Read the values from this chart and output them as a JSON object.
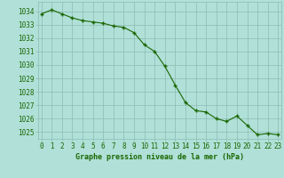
{
  "hours": [
    0,
    1,
    2,
    3,
    4,
    5,
    6,
    7,
    8,
    9,
    10,
    11,
    12,
    13,
    14,
    15,
    16,
    17,
    18,
    19,
    20,
    21,
    22,
    23
  ],
  "pressure": [
    1033.8,
    1034.1,
    1033.8,
    1033.5,
    1033.3,
    1033.2,
    1033.1,
    1032.9,
    1032.8,
    1032.4,
    1031.5,
    1031.0,
    1029.9,
    1028.5,
    1027.2,
    1026.6,
    1026.5,
    1026.0,
    1025.8,
    1026.2,
    1025.5,
    1024.8,
    1024.9,
    1024.8
  ],
  "line_color": "#1a6600",
  "marker_color": "#1a6600",
  "bg_color": "#b0e0d8",
  "grid_color": "#8cbcb0",
  "label_color": "#1a6600",
  "title": "Graphe pression niveau de la mer (hPa)",
  "ylabel_values": [
    1025,
    1026,
    1027,
    1028,
    1029,
    1030,
    1031,
    1032,
    1033,
    1034
  ],
  "ylim": [
    1024.5,
    1034.7
  ],
  "xlim": [
    -0.3,
    23.3
  ],
  "tick_fontsize": 5.5,
  "title_fontsize": 6.0
}
